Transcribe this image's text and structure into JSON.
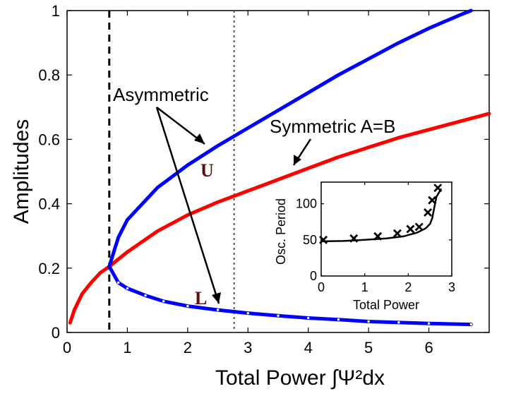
{
  "chart_data": [
    {
      "type": "line",
      "xlabel": "Total Power ∫Ψ²dx",
      "ylabel": "Amplitudes",
      "xlim": [
        0,
        7
      ],
      "ylim": [
        0,
        1
      ],
      "xticks": [
        "0",
        "1",
        "2",
        "3",
        "4",
        "5",
        "6"
      ],
      "yticks": [
        "0",
        "0.2",
        "0.4",
        "0.6",
        "0.8",
        "1"
      ],
      "grid": false,
      "vlines": [
        {
          "x": 0.7,
          "style": "dashed"
        },
        {
          "x": 2.77,
          "style": "dotted"
        }
      ],
      "series": [
        {
          "color": "#ff0000",
          "x": [
            0.05,
            0.12,
            0.25,
            0.4,
            0.55,
            0.7,
            1.0,
            1.5,
            2.0,
            2.5,
            3.0,
            3.5,
            4.0,
            4.5,
            5.0,
            5.5,
            6.0,
            6.5,
            7.0
          ],
          "y": [
            0.03,
            0.07,
            0.12,
            0.155,
            0.185,
            0.205,
            0.25,
            0.315,
            0.365,
            0.405,
            0.44,
            0.475,
            0.51,
            0.545,
            0.575,
            0.605,
            0.63,
            0.655,
            0.68
          ]
        },
        {
          "color": "#0000ff",
          "x": [
            0.7,
            0.85,
            1.0,
            1.5,
            2.0,
            2.5,
            3.0,
            3.5,
            4.0,
            4.5,
            5.0,
            5.5,
            6.0,
            6.5,
            6.7
          ],
          "y": [
            0.205,
            0.295,
            0.35,
            0.45,
            0.52,
            0.58,
            0.635,
            0.69,
            0.745,
            0.8,
            0.85,
            0.9,
            0.945,
            0.985,
            1.0
          ]
        },
        {
          "color": "#0000ff",
          "markers": "circle",
          "x": [
            0.7,
            0.85,
            1.0,
            1.3,
            1.6,
            2.0,
            2.5,
            3.0,
            3.5,
            4.0,
            4.5,
            5.0,
            5.5,
            6.0,
            6.7
          ],
          "y": [
            0.205,
            0.155,
            0.137,
            0.115,
            0.097,
            0.082,
            0.07,
            0.06,
            0.052,
            0.045,
            0.04,
            0.034,
            0.031,
            0.028,
            0.025
          ]
        }
      ],
      "annotations": [
        {
          "text": "Asymmetric",
          "x": 1.35,
          "y": 0.835
        },
        {
          "text": "Symmetric A=B",
          "x": 4.3,
          "y": 0.7
        },
        {
          "text": "U",
          "x": 2.45,
          "y": 0.515
        },
        {
          "text": "L",
          "x": 2.3,
          "y": 0.095
        }
      ]
    },
    {
      "type": "line",
      "xlabel": "Total Power",
      "ylabel": "Osc. Period",
      "xlim": [
        0,
        3
      ],
      "ylim": [
        0,
        130
      ],
      "xticks": [
        "0",
        "1",
        "2",
        "3"
      ],
      "yticks": [
        "0",
        "50",
        "100"
      ],
      "series": [
        {
          "color": "#000000",
          "x": [
            0.0,
            0.5,
            1.0,
            1.5,
            1.9,
            2.2,
            2.4,
            2.5,
            2.55,
            2.6,
            2.65,
            2.75
          ],
          "y": [
            48,
            48.5,
            50,
            52,
            55,
            60,
            66,
            72,
            80,
            95,
            110,
            120
          ]
        },
        {
          "markers": "x",
          "color": "#000000",
          "x": [
            0.05,
            0.75,
            1.3,
            1.75,
            2.05,
            2.25,
            2.45,
            2.55,
            2.68
          ],
          "y": [
            50,
            52,
            55,
            59,
            65,
            68,
            88,
            105,
            122
          ]
        }
      ]
    }
  ]
}
